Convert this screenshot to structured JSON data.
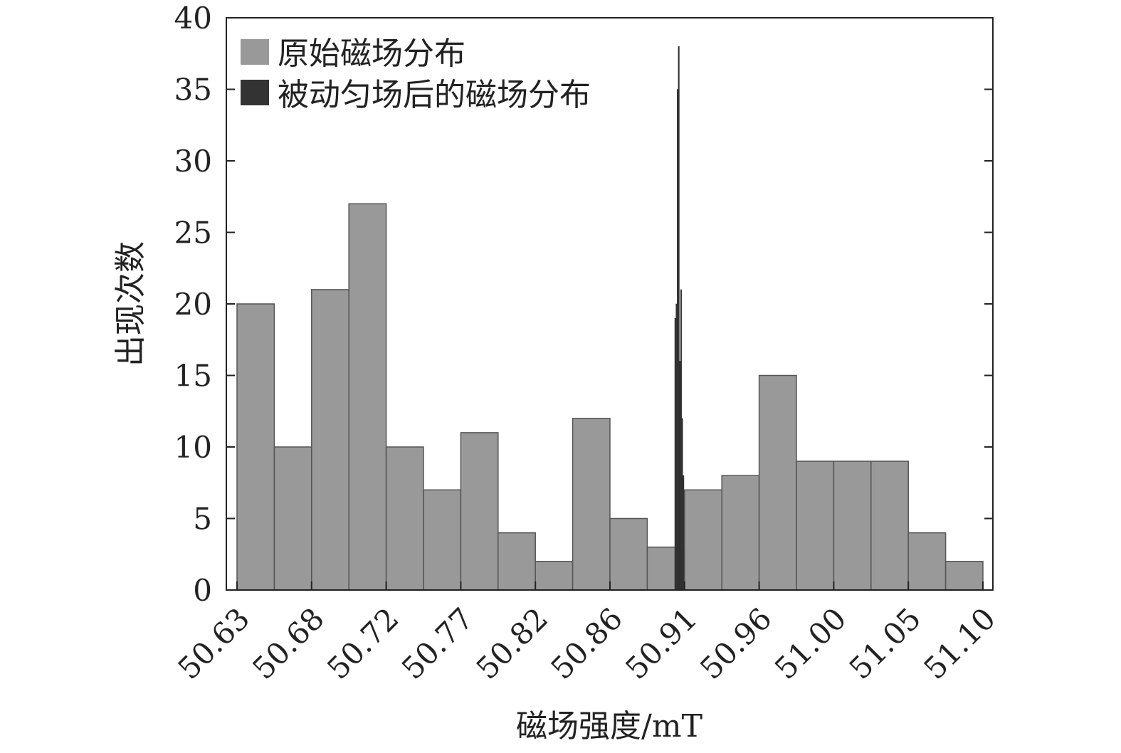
{
  "chart_data": {
    "type": "bar",
    "title": "",
    "xlabel": "磁场强度/mT",
    "ylabel": "出现次数",
    "xlim": [
      50.63,
      51.1
    ],
    "ylim": [
      0,
      40
    ],
    "xticks": [
      "50.63",
      "50.68",
      "50.72",
      "50.77",
      "50.82",
      "50.86",
      "50.91",
      "50.96",
      "51.00",
      "51.05",
      "51.10"
    ],
    "yticks": [
      "0",
      "5",
      "10",
      "15",
      "20",
      "25",
      "30",
      "35",
      "40"
    ],
    "legend_position": "top-left",
    "series": [
      {
        "name": "原始磁场分布",
        "color": "#999999",
        "bin_start": 50.63,
        "bin_width": 0.0235,
        "values": [
          20,
          10,
          21,
          27,
          10,
          7,
          11,
          4,
          2,
          12,
          5,
          3,
          7,
          8,
          15,
          9,
          9,
          9,
          4,
          2
        ]
      },
      {
        "name": "被动匀场后的磁场分布",
        "color": "#333333",
        "bin_start": 50.9058,
        "bin_width": 0.00073,
        "values": [
          19,
          20,
          35,
          38,
          16,
          21,
          12,
          8
        ]
      }
    ]
  }
}
